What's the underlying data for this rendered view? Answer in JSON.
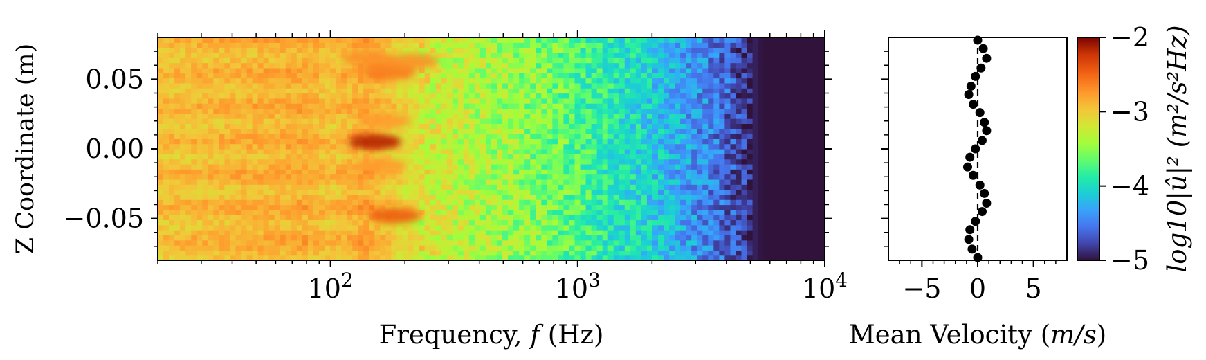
{
  "chart_data": [
    {
      "type": "heatmap",
      "xlabel": "Frequency, f (Hz)",
      "ylabel": "Z Coordinate (m)",
      "x_scale": "log",
      "xlim": [
        20,
        10000
      ],
      "ylim": [
        -0.08,
        0.08
      ],
      "x_ticks": [
        {
          "value": 100,
          "label": "10^2"
        },
        {
          "value": 1000,
          "label": "10^3"
        },
        {
          "value": 10000,
          "label": "10^4"
        }
      ],
      "y_ticks": [
        {
          "value": 0.05,
          "label": "0.05"
        },
        {
          "value": 0.0,
          "label": "0.00"
        },
        {
          "value": -0.05,
          "label": "−0.05"
        }
      ],
      "colormap": "turbo",
      "value_range": [
        -5,
        -2
      ],
      "spectrum_profile": {
        "log10_f": [
          1.3,
          1.6,
          1.9,
          2.0,
          2.15,
          2.3,
          2.5,
          2.7,
          2.9,
          3.1,
          3.3,
          3.45,
          3.6,
          3.7,
          3.75,
          4.0
        ],
        "level": [
          -2.95,
          -2.9,
          -2.85,
          -2.95,
          -2.8,
          -3.1,
          -3.3,
          -3.45,
          -3.6,
          -3.85,
          -4.1,
          -4.35,
          -4.6,
          -4.9,
          -5.0,
          -5.0
        ]
      },
      "hot_spots": [
        {
          "log10_f": 2.18,
          "z": 0.005,
          "level": -2.15
        },
        {
          "log10_f": 2.26,
          "z": -0.048,
          "level": -2.45
        },
        {
          "log10_f": 2.24,
          "z": 0.055,
          "level": -2.6
        },
        {
          "log10_f": 2.15,
          "z": 0.065,
          "level": -2.7
        },
        {
          "log10_f": 2.33,
          "z": 0.063,
          "level": -2.7
        },
        {
          "log10_f": 2.22,
          "z": 0.02,
          "level": -2.75
        },
        {
          "log10_f": 2.2,
          "z": -0.012,
          "level": -2.75
        }
      ]
    },
    {
      "type": "scatter",
      "xlabel": "Mean Velocity (m/s)",
      "xlim": [
        -8,
        8
      ],
      "ylim": [
        -0.08,
        0.08
      ],
      "x_ticks": [
        {
          "value": -5,
          "label": "−5"
        },
        {
          "value": 0,
          "label": "0"
        },
        {
          "value": 5,
          "label": "5"
        }
      ],
      "points": {
        "x": [
          0.0,
          0.5,
          0.8,
          0.3,
          -0.2,
          -0.6,
          -0.8,
          -0.4,
          0.2,
          0.6,
          0.8,
          0.4,
          -0.2,
          -0.7,
          -0.9,
          -0.4,
          0.2,
          0.6,
          0.8,
          0.4,
          -0.2,
          -0.7,
          -0.8,
          -0.5,
          0.0
        ],
        "y": [
          0.078,
          0.072,
          0.065,
          0.058,
          0.052,
          0.045,
          0.039,
          0.032,
          0.026,
          0.019,
          0.013,
          0.006,
          0.0,
          -0.006,
          -0.013,
          -0.019,
          -0.026,
          -0.032,
          -0.039,
          -0.045,
          -0.052,
          -0.058,
          -0.065,
          -0.072,
          -0.078
        ]
      },
      "reference_line": {
        "x": 0,
        "style": "dashed"
      }
    }
  ],
  "colorbar": {
    "label": "log10|û|² (m²/s²Hz)",
    "range": [
      -5,
      -2
    ],
    "ticks": [
      {
        "value": -2,
        "label": "−2"
      },
      {
        "value": -3,
        "label": "−3"
      },
      {
        "value": -4,
        "label": "−4"
      },
      {
        "value": -5,
        "label": "−5"
      }
    ]
  }
}
